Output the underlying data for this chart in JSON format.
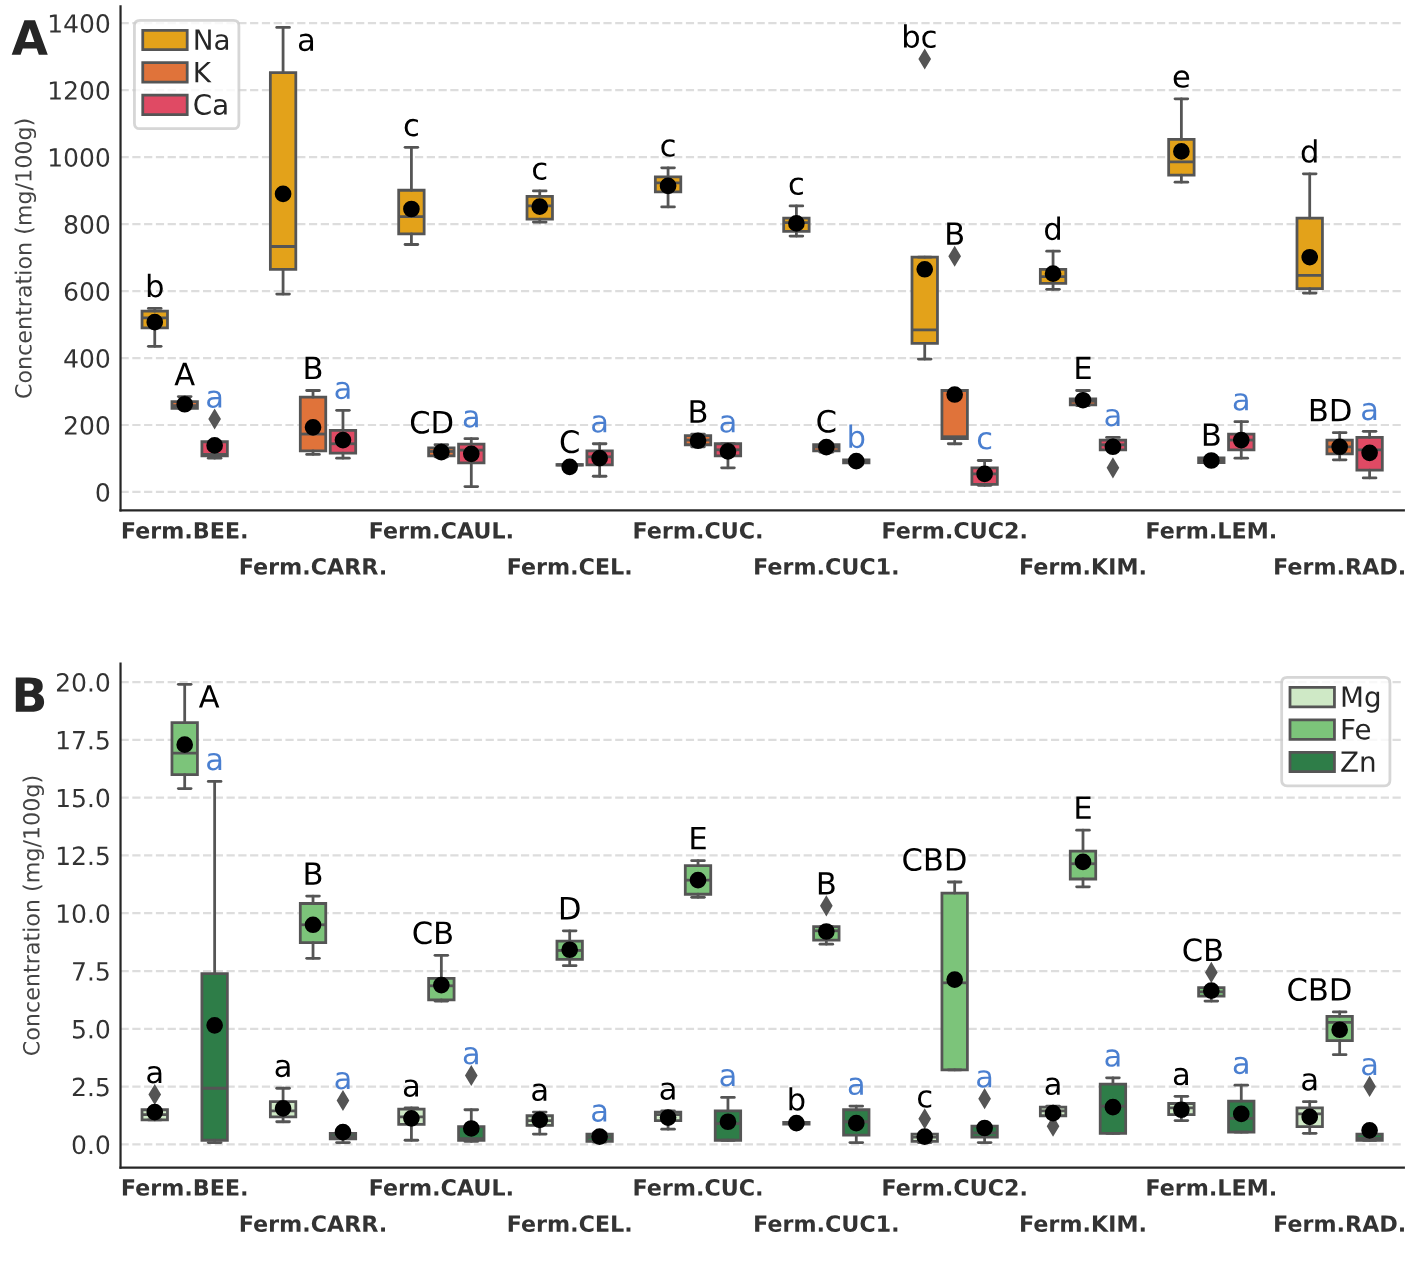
{
  "chart_data": [
    {
      "type": "box",
      "title": "A",
      "ylabel": "Concentration (mg/100g)",
      "categories": [
        "Ferm.BEE.",
        "Ferm.CARR.",
        "Ferm.CAUL.",
        "Ferm.CEL.",
        "Ferm.CUC.",
        "Ferm.CUC1.",
        "Ferm.CUC2.",
        "Ferm.KIM.",
        "Ferm.LEM.",
        "Ferm.RAD."
      ],
      "ylim": [
        -55,
        1450
      ],
      "yticks": [
        0,
        200,
        400,
        600,
        800,
        1000,
        1200,
        1400
      ],
      "grid": "y",
      "legend": "top left",
      "marker": "circle",
      "series": [
        {
          "name": "Na",
          "color": "#e3a21a",
          "value_labels": [
            "b",
            "a",
            "c",
            "c",
            "c",
            "c",
            "bc",
            "d",
            "e",
            "d"
          ],
          "boxes": [
            {
              "low": 435,
              "q1": 490,
              "median": 520,
              "q3": 540,
              "high": 548,
              "mean": 507
            },
            {
              "low": 591,
              "q1": 665,
              "median": 733,
              "q3": 1252,
              "high": 1387,
              "mean": 890
            },
            {
              "low": 739,
              "q1": 771,
              "median": 822,
              "q3": 901,
              "high": 1029,
              "mean": 845
            },
            {
              "low": 806,
              "q1": 815,
              "median": 854,
              "q3": 883,
              "high": 899,
              "mean": 852
            },
            {
              "low": 851,
              "q1": 896,
              "median": 923,
              "q3": 941,
              "high": 968,
              "mean": 914
            },
            {
              "low": 764,
              "q1": 778,
              "median": 804,
              "q3": 818,
              "high": 854,
              "mean": 802
            },
            {
              "low": 397,
              "q1": 444,
              "median": 484,
              "q3": 701,
              "high": 701,
              "mean": 665,
              "outliers": [
                1293
              ]
            },
            {
              "low": 605,
              "q1": 623,
              "median": 643,
              "q3": 665,
              "high": 719,
              "mean": 652
            },
            {
              "low": 925,
              "q1": 946,
              "median": 986,
              "q3": 1053,
              "high": 1174,
              "mean": 1017
            },
            {
              "low": 594,
              "q1": 607,
              "median": 647,
              "q3": 818,
              "high": 950,
              "mean": 701
            }
          ]
        },
        {
          "name": "K",
          "color": "#e0733a",
          "value_labels": [
            "A",
            "B",
            "CD",
            "C",
            "B",
            "C",
            "B",
            "E",
            "B",
            "BD"
          ],
          "boxes": [
            {
              "low": 250,
              "q1": 250,
              "median": 258,
              "q3": 270,
              "high": 285,
              "mean": 262
            },
            {
              "low": 112,
              "q1": 123,
              "median": 173,
              "q3": 283,
              "high": 303,
              "mean": 193
            },
            {
              "low": 105,
              "q1": 108,
              "median": 121,
              "q3": 132,
              "high": 141,
              "mean": 119
            },
            {
              "low": 78,
              "q1": 80,
              "median": 81,
              "q3": 82,
              "high": 83,
              "mean": 75
            },
            {
              "low": 135,
              "q1": 141,
              "median": 155,
              "q3": 168,
              "high": 173,
              "mean": 153
            },
            {
              "low": 119,
              "q1": 123,
              "median": 134,
              "q3": 141,
              "high": 144,
              "mean": 134
            },
            {
              "low": 144,
              "q1": 159,
              "median": 165,
              "q3": 303,
              "high": 303,
              "mean": 291,
              "outliers": [
                704
              ]
            },
            {
              "low": 258,
              "q1": 260,
              "median": 271,
              "q3": 278,
              "high": 303,
              "mean": 274
            },
            {
              "low": 85,
              "q1": 88,
              "median": 94,
              "q3": 102,
              "high": 104,
              "mean": 94
            },
            {
              "low": 96,
              "q1": 114,
              "median": 135,
              "q3": 155,
              "high": 177,
              "mean": 135
            }
          ]
        },
        {
          "name": "Ca",
          "color": "#e04a64",
          "value_labels": [
            "a",
            "a",
            "a",
            "a",
            "a",
            "b",
            "c",
            "a",
            "a",
            "a"
          ],
          "boxes": [
            {
              "low": 101,
              "q1": 108,
              "median": 112,
              "q3": 150,
              "high": 150,
              "mean": 139,
              "outliers": [
                218
              ]
            },
            {
              "low": 101,
              "q1": 116,
              "median": 144,
              "q3": 184,
              "high": 244,
              "mean": 155
            },
            {
              "low": 16,
              "q1": 87,
              "median": 125,
              "q3": 143,
              "high": 159,
              "mean": 114
            },
            {
              "low": 47,
              "q1": 81,
              "median": 105,
              "q3": 123,
              "high": 144,
              "mean": 101
            },
            {
              "low": 72,
              "q1": 108,
              "median": 126,
              "q3": 144,
              "high": 144,
              "mean": 121
            },
            {
              "low": 82,
              "q1": 87,
              "median": 92,
              "q3": 96,
              "high": 98,
              "mean": 92
            },
            {
              "low": 20,
              "q1": 23,
              "median": 54,
              "q3": 72,
              "high": 94,
              "mean": 54
            },
            {
              "low": 126,
              "q1": 126,
              "median": 141,
              "q3": 155,
              "high": 163,
              "mean": 135,
              "outliers": [
                72
              ]
            },
            {
              "low": 101,
              "q1": 126,
              "median": 155,
              "q3": 173,
              "high": 210,
              "mean": 155
            },
            {
              "low": 42,
              "q1": 65,
              "median": 126,
              "q3": 163,
              "high": 181,
              "mean": 117
            }
          ]
        }
      ]
    },
    {
      "type": "box",
      "title": "B",
      "ylabel": "Concentration (mg/100g)",
      "categories": [
        "Ferm.BEE.",
        "Ferm.CARR.",
        "Ferm.CAUL.",
        "Ferm.CEL.",
        "Ferm.CUC.",
        "Ferm.CUC1.",
        "Ferm.CUC2.",
        "Ferm.KIM.",
        "Ferm.LEM.",
        "Ferm.RAD."
      ],
      "ylim": [
        -1.0,
        20.8
      ],
      "yticks": [
        {
          "value": 0,
          "label": "0.0"
        },
        {
          "value": 2.5,
          "label": "2.5"
        },
        {
          "value": 5,
          "label": "5.0"
        },
        {
          "value": 7.5,
          "label": "7.5"
        },
        {
          "value": 10,
          "label": "10.0"
        },
        {
          "value": 12.5,
          "label": "12.5"
        },
        {
          "value": 15,
          "label": "15.0"
        },
        {
          "value": 17.5,
          "label": "17.5"
        },
        {
          "value": 20,
          "label": "20.0"
        }
      ],
      "grid": "y",
      "legend": "top right",
      "marker": "circle",
      "series": [
        {
          "name": "Mg",
          "color": "#cfe9c6",
          "value_labels": [
            "a",
            "a",
            "a",
            "a",
            "a",
            "b",
            "c",
            "a",
            "a",
            "a"
          ],
          "boxes": [
            {
              "low": 1.06,
              "q1": 1.06,
              "median": 1.29,
              "q3": 1.5,
              "high": 1.5,
              "mean": 1.4,
              "outliers": [
                2.16
              ]
            },
            {
              "low": 0.98,
              "q1": 1.19,
              "median": 1.45,
              "q3": 1.85,
              "high": 2.43,
              "mean": 1.56
            },
            {
              "low": 0.18,
              "q1": 0.87,
              "median": 1.19,
              "q3": 1.53,
              "high": 1.58,
              "mean": 1.13
            },
            {
              "low": 0.45,
              "q1": 0.82,
              "median": 1.03,
              "q3": 1.24,
              "high": 1.4,
              "mean": 1.06
            },
            {
              "low": 0.66,
              "q1": 1.03,
              "median": 1.29,
              "q3": 1.4,
              "high": 1.45,
              "mean": 1.16
            },
            {
              "low": 0.85,
              "q1": 0.88,
              "median": 0.92,
              "q3": 0.95,
              "high": 0.98,
              "mean": 0.92
            },
            {
              "low": 0.08,
              "q1": 0.13,
              "median": 0.32,
              "q3": 0.45,
              "high": 0.45,
              "mean": 0.34,
              "outliers": [
                1.11
              ]
            },
            {
              "low": 1.24,
              "q1": 1.24,
              "median": 1.45,
              "q3": 1.61,
              "high": 1.66,
              "mean": 1.35,
              "outliers": [
                0.79
              ]
            },
            {
              "low": 1.03,
              "q1": 1.29,
              "median": 1.58,
              "q3": 1.77,
              "high": 2.08,
              "mean": 1.5
            },
            {
              "low": 0.48,
              "q1": 0.77,
              "median": 1.32,
              "q3": 1.58,
              "high": 1.85,
              "mean": 1.19
            }
          ]
        },
        {
          "name": "Fe",
          "color": "#7cc47a",
          "value_labels": [
            "A",
            "B",
            "CB",
            "D",
            "E",
            "B",
            "CBD",
            "E",
            "CB",
            "CBD"
          ],
          "boxes": [
            {
              "low": 15.39,
              "q1": 15.99,
              "median": 16.92,
              "q3": 18.24,
              "high": 19.9,
              "mean": 17.29
            },
            {
              "low": 8.05,
              "q1": 8.73,
              "median": 9.5,
              "q3": 10.42,
              "high": 10.74,
              "mean": 9.5
            },
            {
              "low": 6.2,
              "q1": 6.25,
              "median": 6.86,
              "q3": 7.18,
              "high": 8.18,
              "mean": 6.89
            },
            {
              "low": 7.73,
              "q1": 8.0,
              "median": 8.39,
              "q3": 8.79,
              "high": 9.24,
              "mean": 8.42
            },
            {
              "low": 10.69,
              "q1": 10.82,
              "median": 11.43,
              "q3": 12.06,
              "high": 12.27,
              "mean": 11.43
            },
            {
              "low": 8.66,
              "q1": 8.84,
              "median": 9.24,
              "q3": 9.42,
              "high": 9.42,
              "mean": 9.21,
              "outliers": [
                10.32
              ]
            },
            {
              "low": 3.22,
              "q1": 3.22,
              "median": 6.99,
              "q3": 10.87,
              "high": 11.35,
              "mean": 7.13
            },
            {
              "low": 11.14,
              "q1": 11.48,
              "median": 12.14,
              "q3": 12.69,
              "high": 13.59,
              "mean": 12.22
            },
            {
              "low": 6.2,
              "q1": 6.41,
              "median": 6.6,
              "q3": 6.78,
              "high": 6.78,
              "mean": 6.65,
              "outliers": [
                7.44
              ]
            },
            {
              "low": 3.88,
              "q1": 4.49,
              "median": 5.28,
              "q3": 5.54,
              "high": 5.73,
              "mean": 4.96
            }
          ]
        },
        {
          "name": "Zn",
          "color": "#2e7d48",
          "value_labels": [
            "a",
            "a",
            "a",
            "a",
            "a",
            "a",
            "a",
            "a",
            "a",
            "a"
          ],
          "boxes": [
            {
              "low": 0.08,
              "q1": 0.18,
              "median": 2.43,
              "q3": 7.39,
              "high": 15.7,
              "mean": 5.15
            },
            {
              "low": 0.08,
              "q1": 0.24,
              "median": 0.34,
              "q3": 0.48,
              "high": 0.48,
              "mean": 0.53,
              "outliers": [
                1.9
              ]
            },
            {
              "low": 0.13,
              "q1": 0.18,
              "median": 0.25,
              "q3": 0.77,
              "high": 1.5,
              "mean": 0.69,
              "outliers": [
                2.98
              ]
            },
            {
              "low": 0.1,
              "q1": 0.13,
              "median": 0.3,
              "q3": 0.45,
              "high": 0.5,
              "mean": 0.34
            },
            {
              "low": 0.18,
              "q1": 0.18,
              "median": 0.9,
              "q3": 1.45,
              "high": 2.03,
              "mean": 0.98
            },
            {
              "low": 0.08,
              "q1": 0.4,
              "median": 0.98,
              "q3": 1.5,
              "high": 1.66,
              "mean": 0.92
            },
            {
              "low": 0.08,
              "q1": 0.32,
              "median": 0.5,
              "q3": 0.79,
              "high": 0.79,
              "mean": 0.71,
              "outliers": [
                1.98
              ]
            },
            {
              "low": 0.48,
              "q1": 0.48,
              "median": 1.66,
              "q3": 2.61,
              "high": 2.88,
              "mean": 1.61
            },
            {
              "low": 0.53,
              "q1": 0.53,
              "median": 1.13,
              "q3": 1.87,
              "high": 2.56,
              "mean": 1.32
            },
            {
              "low": 0.18,
              "q1": 0.18,
              "median": 0.26,
              "q3": 0.45,
              "high": 0.45,
              "mean": 0.61,
              "outliers": [
                2.51
              ]
            }
          ]
        }
      ]
    }
  ]
}
